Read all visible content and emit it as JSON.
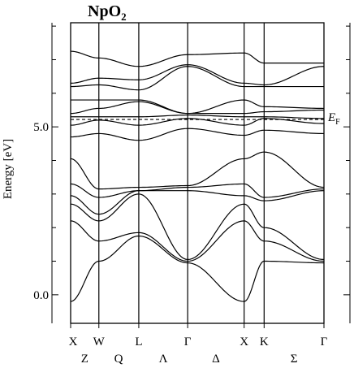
{
  "chart_data": {
    "type": "line",
    "title": "NpO",
    "title_subscript": "2",
    "ylabel": "Energy [eV]",
    "ylim": [
      -0.85,
      8.1
    ],
    "y_ticks": [
      {
        "value": 0.0,
        "label": "0.0"
      },
      {
        "value": 5.0,
        "label": "5.0"
      }
    ],
    "k_points": [
      {
        "label": "X",
        "k": 0.0
      },
      {
        "label": "W",
        "k": 0.5
      },
      {
        "label": "L",
        "k": 1.207
      },
      {
        "label": "Γ",
        "k": 2.073
      },
      {
        "label": "X",
        "k": 3.073
      },
      {
        "label": "K",
        "k": 3.427
      },
      {
        "label": "Γ",
        "k": 4.487
      }
    ],
    "direction_labels": [
      {
        "label": "Z",
        "k": 0.25
      },
      {
        "label": "Q",
        "k": 0.85
      },
      {
        "label": "Λ",
        "k": 1.64
      },
      {
        "label": "Δ",
        "k": 2.573
      },
      {
        "label": "Σ",
        "k": 3.957
      }
    ],
    "fermi_level": {
      "energy": 5.22,
      "label": "E",
      "label_subscript": "F"
    },
    "series": [
      {
        "k": [
          0,
          0.5,
          1.207,
          2.073,
          3.073,
          3.427,
          4.487
        ],
        "energy": [
          -0.2,
          1.0,
          1.75,
          0.95,
          -0.2,
          1.0,
          0.95
        ]
      },
      {
        "k": [
          0,
          0.5,
          1.207,
          2.073,
          3.073,
          3.427,
          4.487
        ],
        "energy": [
          2.2,
          1.6,
          1.85,
          1.0,
          2.2,
          1.6,
          1.0
        ]
      },
      {
        "k": [
          0,
          0.5,
          1.207,
          2.073,
          3.073,
          3.427,
          4.487
        ],
        "energy": [
          2.7,
          2.2,
          3.0,
          1.05,
          2.7,
          2.0,
          1.05
        ]
      },
      {
        "k": [
          0,
          0.5,
          1.207,
          2.073,
          3.073,
          3.427,
          4.487
        ],
        "energy": [
          2.95,
          2.4,
          3.1,
          3.1,
          2.95,
          2.8,
          3.1
        ]
      },
      {
        "k": [
          0,
          0.5,
          1.207,
          2.073,
          3.073,
          3.427,
          4.487
        ],
        "energy": [
          3.3,
          2.9,
          3.1,
          3.2,
          3.3,
          2.9,
          3.15
        ]
      },
      {
        "k": [
          0,
          0.5,
          1.207,
          2.073,
          3.073,
          3.427,
          4.487
        ],
        "energy": [
          4.05,
          3.15,
          3.2,
          3.25,
          4.05,
          4.25,
          3.2
        ]
      },
      {
        "k": [
          0,
          0.5,
          1.207,
          2.073,
          3.073,
          3.427,
          4.487
        ],
        "energy": [
          4.7,
          4.8,
          4.6,
          4.95,
          4.75,
          4.9,
          4.8
        ]
      },
      {
        "k": [
          0,
          0.5,
          1.207,
          2.073,
          3.073,
          3.427,
          4.487
        ],
        "energy": [
          5.05,
          5.2,
          5.05,
          5.25,
          5.05,
          5.25,
          5.1
        ]
      },
      {
        "k": [
          0,
          0.5,
          1.207,
          2.073,
          3.073,
          3.427,
          4.487
        ],
        "energy": [
          5.3,
          5.3,
          5.3,
          5.35,
          5.3,
          5.3,
          5.25
        ]
      },
      {
        "k": [
          0,
          0.5,
          1.207,
          2.073,
          3.073,
          3.427,
          4.487
        ],
        "energy": [
          5.4,
          5.55,
          5.75,
          5.4,
          5.4,
          5.45,
          5.5
        ]
      },
      {
        "k": [
          0,
          0.5,
          1.207,
          2.073,
          3.073,
          3.427,
          4.487
        ],
        "energy": [
          5.8,
          5.8,
          5.8,
          5.4,
          5.8,
          5.6,
          5.55
        ]
      },
      {
        "k": [
          0,
          0.5,
          1.207,
          2.073,
          3.073,
          3.427,
          4.487
        ],
        "energy": [
          6.2,
          6.25,
          6.1,
          6.8,
          6.2,
          6.2,
          6.2
        ]
      },
      {
        "k": [
          0,
          0.5,
          1.207,
          2.073,
          3.073,
          3.427,
          4.487
        ],
        "energy": [
          6.3,
          6.45,
          6.4,
          6.85,
          6.3,
          6.25,
          6.8
        ]
      },
      {
        "k": [
          0,
          0.5,
          1.207,
          2.073,
          3.073,
          3.427,
          4.487
        ],
        "energy": [
          7.25,
          7.05,
          6.8,
          7.15,
          7.2,
          6.9,
          6.9
        ]
      }
    ]
  }
}
